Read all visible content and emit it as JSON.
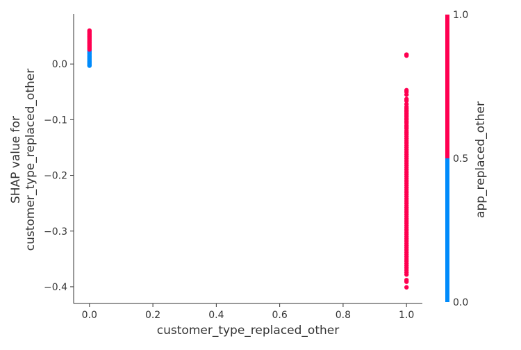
{
  "chart_data": {
    "type": "scatter",
    "title": "",
    "xlabel": "customer_type_replaced_other",
    "ylabel_lines": [
      "SHAP value for",
      "customer_type_replaced_other"
    ],
    "xlim": [
      -0.05,
      1.05
    ],
    "ylim": [
      -0.43,
      0.09
    ],
    "x_ticks": [
      0.0,
      0.2,
      0.4,
      0.6,
      0.8,
      1.0
    ],
    "x_tick_labels": [
      "0.0",
      "0.2",
      "0.4",
      "0.6",
      "0.8",
      "1.0"
    ],
    "y_ticks": [
      0.0,
      -0.1,
      -0.2,
      -0.3,
      -0.4
    ],
    "y_tick_labels": [
      "0.0",
      "−0.1",
      "−0.2",
      "−0.3",
      "−0.4"
    ],
    "grid": false,
    "colors": {
      "low": "#008bfb",
      "high": "#ff0051"
    },
    "colorbar": {
      "label": "app_replaced_other",
      "range": [
        0.0,
        1.0
      ],
      "ticks": [
        0.0,
        0.5,
        1.0
      ],
      "tick_labels": [
        "0.0",
        "0.5",
        "1.0"
      ]
    },
    "series": [
      {
        "x": 0.0,
        "color_value": 0.0,
        "y": [
          -0.003,
          -0.002,
          0.0,
          0.002,
          0.004,
          0.006,
          0.008,
          0.01,
          0.012,
          0.014,
          0.016,
          0.018,
          0.02,
          0.022,
          0.024
        ]
      },
      {
        "x": 0.0,
        "color_value": 1.0,
        "y": [
          0.026,
          0.028,
          0.03,
          0.032,
          0.034,
          0.036,
          0.038,
          0.04,
          0.042,
          0.044,
          0.046,
          0.048,
          0.05,
          0.052,
          0.054,
          0.056,
          0.058,
          0.06
        ]
      },
      {
        "x": 1.0,
        "color_value": 1.0,
        "y": [
          0.017,
          0.015,
          -0.047,
          -0.05,
          -0.055,
          -0.063,
          -0.066,
          -0.072,
          -0.077,
          -0.08,
          -0.083,
          -0.085,
          -0.088,
          -0.09,
          -0.093,
          -0.095,
          -0.098,
          -0.1,
          -0.103,
          -0.106,
          -0.11,
          -0.113,
          -0.116,
          -0.12,
          -0.123,
          -0.126,
          -0.13,
          -0.134,
          -0.138,
          -0.142,
          -0.146,
          -0.15,
          -0.154,
          -0.158,
          -0.162,
          -0.166,
          -0.17,
          -0.174,
          -0.178,
          -0.182,
          -0.186,
          -0.19,
          -0.194,
          -0.198,
          -0.202,
          -0.206,
          -0.21,
          -0.214,
          -0.218,
          -0.222,
          -0.226,
          -0.23,
          -0.234,
          -0.238,
          -0.242,
          -0.246,
          -0.25,
          -0.254,
          -0.258,
          -0.262,
          -0.266,
          -0.27,
          -0.274,
          -0.278,
          -0.282,
          -0.286,
          -0.29,
          -0.294,
          -0.298,
          -0.302,
          -0.306,
          -0.31,
          -0.314,
          -0.318,
          -0.322,
          -0.326,
          -0.33,
          -0.334,
          -0.338,
          -0.342,
          -0.346,
          -0.35,
          -0.354,
          -0.358,
          -0.362,
          -0.366,
          -0.37,
          -0.374,
          -0.378,
          -0.388,
          -0.391,
          -0.401
        ]
      }
    ]
  }
}
